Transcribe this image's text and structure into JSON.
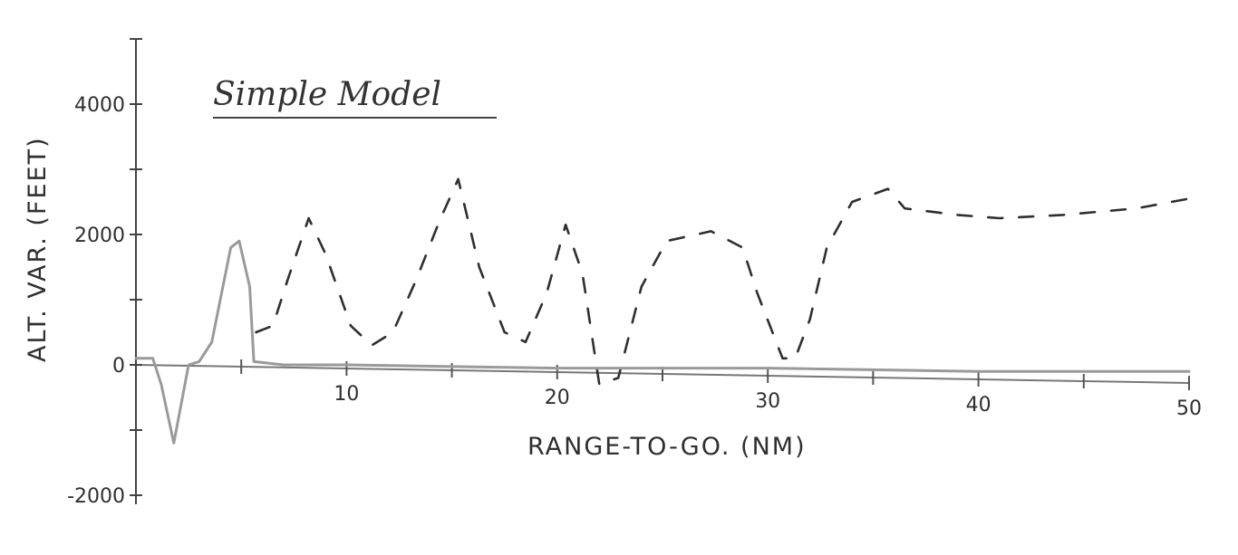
{
  "chart_data": {
    "type": "line",
    "title": "Simple Model",
    "xlabel": "RANGE-TO-GO. (NM)",
    "ylabel": "ALT. VAR. (FEET)",
    "xlim": [
      0,
      50
    ],
    "ylim": [
      -2000,
      5000
    ],
    "x_ticks": [
      10,
      20,
      30,
      40,
      50
    ],
    "y_ticks": [
      -2000,
      0,
      2000,
      4000
    ],
    "grid": false,
    "series": [
      {
        "style": "dashed",
        "color": "#2f2f2f",
        "points": [
          [
            5.7,
            500
          ],
          [
            6.5,
            600
          ],
          [
            7.2,
            1300
          ],
          [
            8.2,
            2250
          ],
          [
            9.0,
            1700
          ],
          [
            10.2,
            600
          ],
          [
            11.2,
            300
          ],
          [
            12.2,
            500
          ],
          [
            13.3,
            1300
          ],
          [
            14.4,
            2200
          ],
          [
            15.3,
            2850
          ],
          [
            16.3,
            1500
          ],
          [
            17.5,
            500
          ],
          [
            18.5,
            350
          ],
          [
            19.5,
            1100
          ],
          [
            20.4,
            2150
          ],
          [
            21.2,
            1400
          ],
          [
            22.0,
            -300
          ],
          [
            22.9,
            -200
          ],
          [
            24.0,
            1200
          ],
          [
            25.2,
            1900
          ],
          [
            27.3,
            2050
          ],
          [
            28.8,
            1800
          ],
          [
            29.5,
            1100
          ],
          [
            30.7,
            100
          ],
          [
            31.3,
            100
          ],
          [
            32.0,
            700
          ],
          [
            32.8,
            1800
          ],
          [
            34.0,
            2500
          ],
          [
            35.7,
            2700
          ],
          [
            36.5,
            2400
          ],
          [
            39.0,
            2300
          ],
          [
            41.0,
            2250
          ],
          [
            44.0,
            2300
          ],
          [
            47.5,
            2400
          ],
          [
            50.0,
            2550
          ]
        ]
      },
      {
        "style": "solid",
        "color": "#9a9a9a",
        "points": [
          [
            0.0,
            100
          ],
          [
            0.8,
            100
          ],
          [
            1.2,
            -300
          ],
          [
            1.8,
            -1200
          ],
          [
            2.5,
            0
          ],
          [
            3.0,
            50
          ],
          [
            3.6,
            350
          ],
          [
            4.5,
            1800
          ],
          [
            4.9,
            1900
          ],
          [
            5.4,
            1200
          ],
          [
            5.6,
            50
          ],
          [
            7.0,
            0
          ],
          [
            10.0,
            0
          ],
          [
            20.0,
            -50
          ],
          [
            30.0,
            -50
          ],
          [
            40.0,
            -100
          ],
          [
            50.0,
            -100
          ]
        ]
      }
    ]
  }
}
